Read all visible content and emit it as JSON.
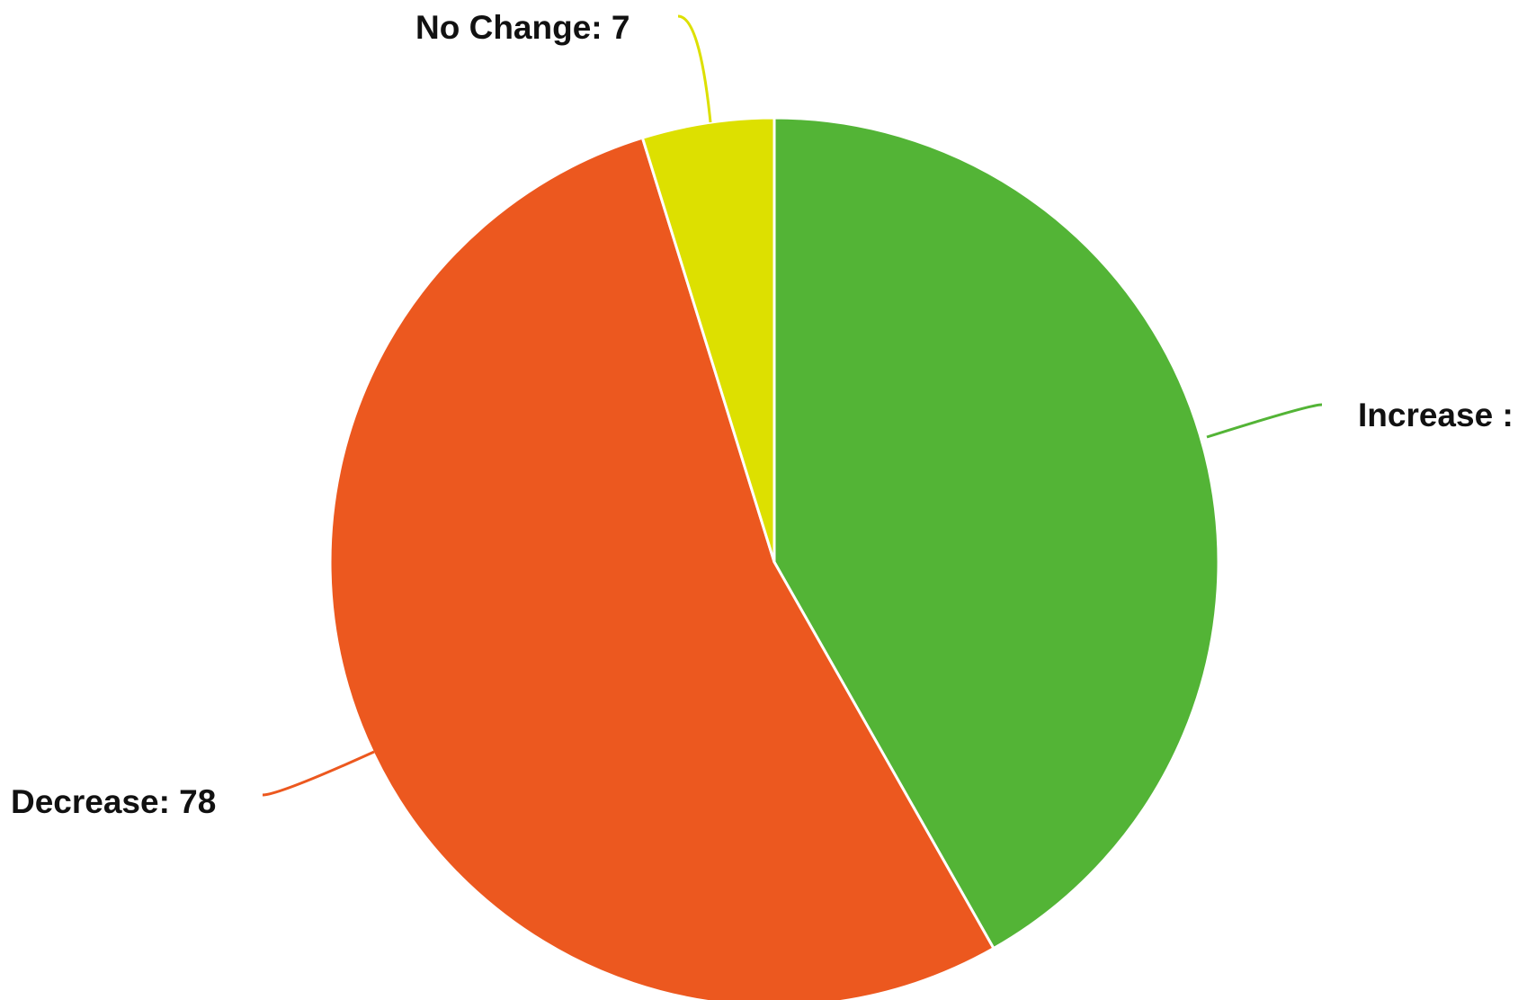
{
  "chart_data": {
    "type": "pie",
    "title": "",
    "slices": [
      {
        "label": "Increase",
        "value": 61,
        "color": "#53b436",
        "display_text": "Increase :"
      },
      {
        "label": "Decrease",
        "value": 78,
        "color": "#ec581f",
        "display_text": "Decrease: 78"
      },
      {
        "label": "No Change",
        "value": 7,
        "color": "#dde000",
        "display_text": "No Change: 7"
      }
    ],
    "start_angle_deg": 0,
    "direction": "clockwise",
    "legend": "none",
    "label_style": "outside-with-leader-lines"
  }
}
